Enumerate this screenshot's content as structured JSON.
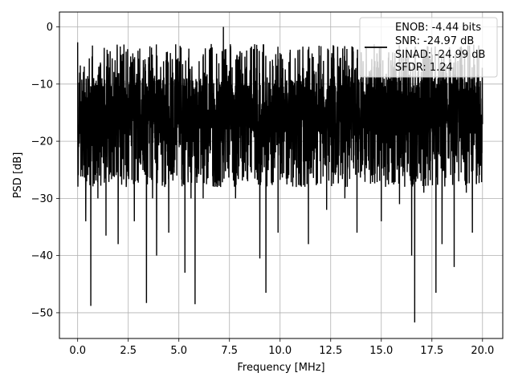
{
  "chart_data": {
    "type": "line",
    "title": "",
    "xlabel": "Frequency [MHz]",
    "ylabel": "PSD [dB]",
    "xlim": [
      -0.9,
      21.0
    ],
    "ylim": [
      -54.5,
      2.6
    ],
    "xticks": [
      0.0,
      2.5,
      5.0,
      7.5,
      10.0,
      12.5,
      15.0,
      17.5,
      20.0
    ],
    "xtick_labels": [
      "0.0",
      "2.5",
      "5.0",
      "7.5",
      "10.0",
      "12.5",
      "15.0",
      "17.5",
      "20.0"
    ],
    "yticks": [
      0,
      -10,
      -20,
      -30,
      -40,
      -50
    ],
    "ytick_labels": [
      "0",
      "−10",
      "−20",
      "−30",
      "−40",
      "−50"
    ],
    "grid": true,
    "legend_position": "top-right",
    "series": [
      {
        "name": "",
        "color": "#000000",
        "x": [
          0.0,
          0.05,
          0.1,
          0.2,
          0.3,
          0.4,
          0.5,
          0.6,
          0.65,
          0.8,
          1.0,
          1.2,
          1.4,
          1.6,
          1.8,
          2.0,
          2.2,
          2.4,
          2.6,
          2.8,
          3.0,
          3.2,
          3.4,
          3.5,
          3.7,
          3.9,
          4.1,
          4.3,
          4.5,
          4.7,
          4.9,
          5.1,
          5.3,
          5.5,
          5.6,
          5.8,
          5.9,
          6.0,
          6.2,
          6.4,
          6.6,
          6.9,
          7.2,
          7.5,
          7.8,
          8.1,
          8.4,
          8.7,
          9.0,
          9.3,
          9.6,
          9.9,
          10.2,
          10.5,
          10.8,
          11.1,
          11.4,
          11.7,
          12.0,
          12.3,
          12.6,
          12.9,
          13.2,
          13.5,
          13.8,
          14.1,
          14.4,
          14.7,
          15.0,
          15.3,
          15.6,
          15.9,
          16.2,
          16.5,
          16.65,
          16.8,
          17.1,
          17.4,
          17.7,
          17.8,
          18.0,
          18.3,
          18.6,
          18.9,
          19.2,
          19.5,
          19.8,
          20.0
        ],
        "y": [
          -2.7,
          -21,
          -8,
          -25,
          -12,
          -34,
          -11,
          -22,
          -48.8,
          -13,
          -30,
          -9,
          -36.5,
          -11,
          -22,
          -38,
          -10,
          -28,
          -8,
          -34,
          -20,
          -9,
          -48.3,
          -12,
          -30,
          -40,
          -7,
          -28,
          -36,
          -8,
          -26,
          -11,
          -43,
          -15,
          -30,
          -48.5,
          -12,
          -6,
          -30,
          -24,
          -3,
          -28,
          0,
          -13,
          -30,
          -6,
          -27,
          -8,
          -40.5,
          -46.5,
          -12,
          -36,
          -20,
          -4,
          -28,
          -11,
          -38,
          -22,
          -5,
          -32,
          -24,
          -7,
          -30,
          -12,
          -36,
          -6,
          -25,
          -9,
          -34,
          -18,
          -7,
          -31,
          -22,
          -40,
          -51.7,
          -9,
          -29,
          -14,
          -46.5,
          -9,
          -38,
          -23,
          -42,
          -4,
          -29,
          -36,
          -12,
          -17
        ]
      }
    ],
    "legend": {
      "lines": [
        "ENOB: -4.44 bits",
        "SNR: -24.97 dB",
        "SINAD: -24.99 dB",
        "SFDR: 1.24"
      ]
    }
  }
}
